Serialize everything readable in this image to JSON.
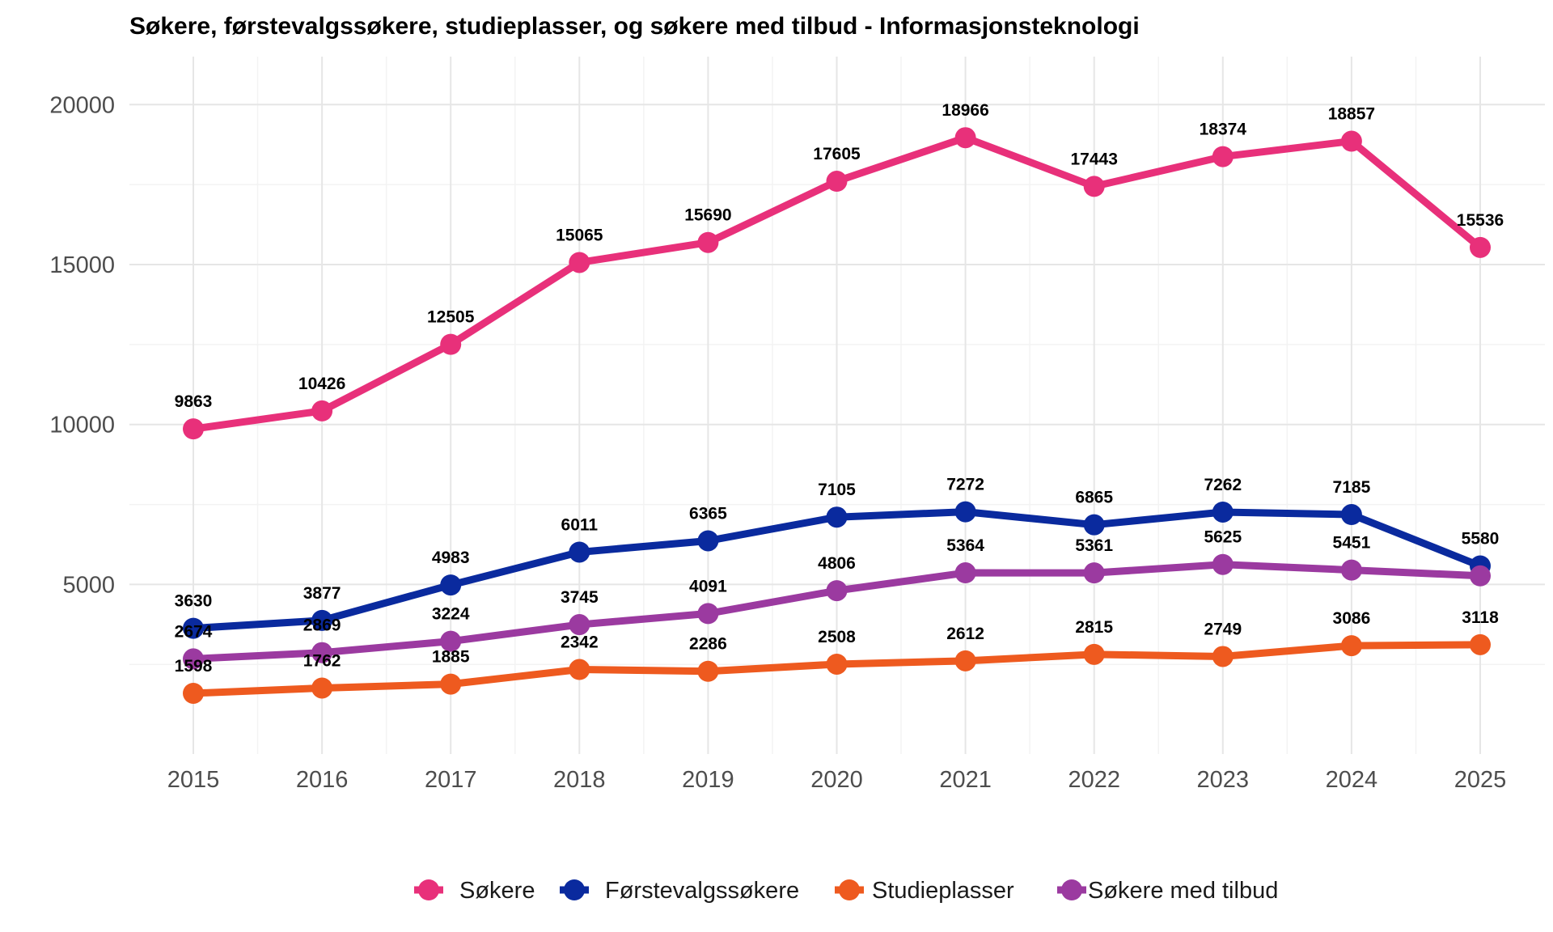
{
  "chart_data": {
    "type": "line",
    "title": "Søkere, førstevalgssøkere, studieplasser, og søkere med tilbud - Informasjonsteknologi",
    "x": [
      "2015",
      "2016",
      "2017",
      "2018",
      "2019",
      "2020",
      "2021",
      "2022",
      "2023",
      "2024",
      "2025"
    ],
    "y_ticks": [
      "5000",
      "10000",
      "15000",
      "20000"
    ],
    "ylim": [
      -300,
      21500
    ],
    "grid": true,
    "legend_position": "bottom",
    "series": [
      {
        "name": "Søkere",
        "color": "#E8307A",
        "values": [
          9863,
          10426,
          12505,
          15065,
          15690,
          17605,
          18966,
          17443,
          18374,
          18857,
          15536
        ],
        "labels": [
          "9863",
          "10426",
          "12505",
          "15065",
          "15690",
          "17605",
          "18966",
          "17443",
          "18374",
          "18857",
          "15536"
        ]
      },
      {
        "name": "Førstevalgssøkere",
        "color": "#0A2A9E",
        "values": [
          3630,
          3877,
          4983,
          6011,
          6365,
          7105,
          7272,
          6865,
          7262,
          7185,
          5580
        ],
        "labels": [
          "3630",
          "3877",
          "4983",
          "6011",
          "6365",
          "7105",
          "7272",
          "6865",
          "7262",
          "7185",
          "5580"
        ]
      },
      {
        "name": "Studieplasser",
        "color": "#EE5A1F",
        "values": [
          1598,
          1762,
          1885,
          2342,
          2286,
          2508,
          2612,
          2815,
          2749,
          3086,
          3118
        ],
        "labels": [
          "1598",
          "1762",
          "1885",
          "2342",
          "2286",
          "2508",
          "2612",
          "2815",
          "2749",
          "3086",
          "3118"
        ]
      },
      {
        "name": "Søkere med tilbud",
        "color": "#9B3AA0",
        "values": [
          2674,
          2869,
          3224,
          3745,
          4091,
          4806,
          5364,
          5361,
          5625,
          5451,
          5270
        ],
        "labels": [
          "2674",
          "2869",
          "3224",
          "3745",
          "4091",
          "4806",
          "5364",
          "5361",
          "5625",
          "5451",
          ""
        ]
      }
    ]
  }
}
